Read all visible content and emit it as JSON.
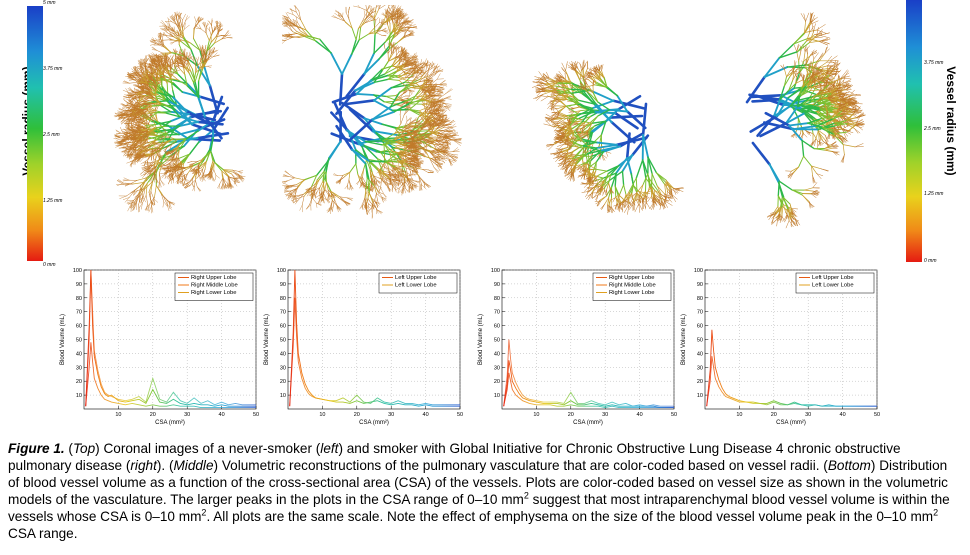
{
  "colorbar": {
    "title": "Vessel radius (mm)",
    "ticks": [
      "5 mm",
      "3.75 mm",
      "2.5 mm",
      "1.25 mm",
      "0 mm"
    ],
    "colors": [
      "#1a3fc7",
      "#1f8fd6",
      "#20c0b0",
      "#2fbf3a",
      "#9fd22a",
      "#e9d21c",
      "#f08a18",
      "#e51b12"
    ]
  },
  "lung_images": [
    {
      "description_icon": "lung-vasculature-never-smoker-right-lung"
    },
    {
      "description_icon": "lung-vasculature-never-smoker-left-lung"
    },
    {
      "description_icon": "lung-vasculature-smoker-right-lung"
    },
    {
      "description_icon": "lung-vasculature-smoker-left-lung"
    }
  ],
  "chart_data": [
    {
      "type": "line",
      "xlabel": "CSA (mm²)",
      "ylabel": "Blood Volume (mL)",
      "xlim": [
        0,
        50
      ],
      "ylim": [
        0,
        100
      ],
      "xticks": [
        10,
        20,
        30,
        40,
        50
      ],
      "yticks": [
        10,
        20,
        30,
        40,
        50,
        60,
        70,
        80,
        90,
        100
      ],
      "grid": true,
      "legend_position": "top-right",
      "series": [
        {
          "name": "Right Upper Lobe",
          "color": "#e65a14",
          "x": [
            0.5,
            1.5,
            2,
            2.5,
            3,
            4,
            5,
            6,
            7,
            8,
            10,
            12,
            14,
            16,
            18,
            20,
            22,
            24,
            26,
            28,
            30,
            32,
            34,
            36,
            38,
            40,
            42,
            44,
            46,
            48,
            50
          ],
          "y": [
            2,
            60,
            100,
            60,
            38,
            25,
            16,
            11,
            9,
            10,
            6,
            5,
            6,
            7,
            4,
            14,
            5,
            4,
            7,
            4,
            3,
            4,
            3,
            3,
            2,
            3,
            2,
            2,
            2,
            2,
            2
          ]
        },
        {
          "name": "Right Middle Lobe",
          "color": "#f07818",
          "x": [
            0.5,
            1.5,
            2,
            2.5,
            3,
            4,
            5,
            6,
            7,
            8,
            10,
            12,
            14,
            16,
            18,
            20,
            22,
            24,
            26,
            28,
            30,
            32,
            34,
            36,
            38,
            40,
            42,
            44,
            46,
            48,
            50
          ],
          "y": [
            2,
            30,
            48,
            34,
            22,
            15,
            10,
            7,
            6,
            5,
            4,
            3,
            4,
            3,
            2,
            3,
            2,
            2,
            3,
            2,
            2,
            2,
            1,
            1,
            1,
            1,
            1,
            1,
            1,
            1,
            1
          ]
        },
        {
          "name": "Right Lower Lobe",
          "color": "#e0a020",
          "x": [
            0.5,
            1.5,
            2,
            2.5,
            3,
            4,
            5,
            6,
            7,
            8,
            10,
            12,
            14,
            16,
            18,
            20,
            22,
            24,
            26,
            28,
            30,
            32,
            34,
            36,
            38,
            40,
            42,
            44,
            46,
            48,
            50
          ],
          "y": [
            2,
            50,
            100,
            70,
            42,
            28,
            18,
            12,
            10,
            9,
            7,
            6,
            7,
            9,
            5,
            22,
            7,
            5,
            12,
            6,
            4,
            8,
            4,
            6,
            3,
            5,
            3,
            4,
            3,
            3,
            3
          ]
        }
      ]
    },
    {
      "type": "line",
      "xlabel": "CSA (mm²)",
      "ylabel": "Blood Volume (mL)",
      "xlim": [
        0,
        50
      ],
      "ylim": [
        0,
        100
      ],
      "xticks": [
        10,
        20,
        30,
        40,
        50
      ],
      "yticks": [
        10,
        20,
        30,
        40,
        50,
        60,
        70,
        80,
        90,
        100
      ],
      "grid": true,
      "legend_position": "top-right",
      "series": [
        {
          "name": "Left Upper Lobe",
          "color": "#e65a14",
          "x": [
            0.5,
            1.5,
            2,
            2.5,
            3,
            4,
            5,
            6,
            7,
            8,
            10,
            12,
            14,
            16,
            18,
            20,
            22,
            24,
            26,
            28,
            30,
            32,
            34,
            36,
            38,
            40,
            42,
            44,
            46,
            48,
            50
          ],
          "y": [
            2,
            55,
            100,
            62,
            40,
            26,
            18,
            13,
            10,
            8,
            7,
            6,
            5,
            5,
            4,
            6,
            4,
            5,
            6,
            4,
            3,
            4,
            3,
            3,
            2,
            3,
            2,
            2,
            2,
            2,
            2
          ]
        },
        {
          "name": "Left Lower Lobe",
          "color": "#e0a020",
          "x": [
            0.5,
            1.5,
            2,
            2.5,
            3,
            4,
            5,
            6,
            7,
            8,
            10,
            12,
            14,
            16,
            18,
            20,
            22,
            24,
            26,
            28,
            30,
            32,
            34,
            36,
            38,
            40,
            42,
            44,
            46,
            48,
            50
          ],
          "y": [
            2,
            45,
            80,
            52,
            34,
            22,
            15,
            11,
            9,
            8,
            7,
            6,
            6,
            8,
            5,
            10,
            5,
            4,
            8,
            5,
            4,
            6,
            4,
            4,
            3,
            4,
            3,
            3,
            3,
            3,
            3
          ]
        }
      ]
    },
    {
      "type": "line",
      "xlabel": "CSA (mm²)",
      "ylabel": "Blood Volume (mL)",
      "xlim": [
        0,
        50
      ],
      "ylim": [
        0,
        100
      ],
      "xticks": [
        10,
        20,
        30,
        40,
        50
      ],
      "yticks": [
        10,
        20,
        30,
        40,
        50,
        60,
        70,
        80,
        90,
        100
      ],
      "grid": true,
      "legend_position": "top-right",
      "series": [
        {
          "name": "Right Upper Lobe",
          "color": "#e65a14",
          "x": [
            0.5,
            1.5,
            2,
            2.5,
            3,
            4,
            5,
            6,
            7,
            8,
            10,
            12,
            14,
            16,
            18,
            20,
            22,
            24,
            26,
            28,
            30,
            32,
            34,
            36,
            38,
            40,
            42,
            44,
            46,
            48,
            50
          ],
          "y": [
            2,
            18,
            35,
            28,
            20,
            15,
            11,
            8,
            7,
            6,
            5,
            4,
            4,
            4,
            3,
            6,
            3,
            3,
            4,
            3,
            2,
            3,
            2,
            2,
            2,
            2,
            2,
            2,
            1,
            1,
            1
          ]
        },
        {
          "name": "Right Middle Lobe",
          "color": "#f07818",
          "x": [
            0.5,
            1.5,
            2,
            2.5,
            3,
            4,
            5,
            6,
            7,
            8,
            10,
            12,
            14,
            16,
            18,
            20,
            22,
            24,
            26,
            28,
            30,
            32,
            34,
            36,
            38,
            40,
            42,
            44,
            46,
            48,
            50
          ],
          "y": [
            2,
            14,
            26,
            20,
            14,
            10,
            8,
            6,
            5,
            4,
            3,
            3,
            3,
            2,
            2,
            3,
            2,
            2,
            2,
            2,
            1,
            2,
            1,
            1,
            1,
            1,
            1,
            1,
            1,
            1,
            1
          ]
        },
        {
          "name": "Right Lower Lobe",
          "color": "#e0a020",
          "x": [
            0.5,
            1.5,
            2,
            2.5,
            3,
            4,
            5,
            6,
            7,
            8,
            10,
            12,
            14,
            16,
            18,
            20,
            22,
            24,
            26,
            28,
            30,
            32,
            34,
            36,
            38,
            40,
            42,
            44,
            46,
            48,
            50
          ],
          "y": [
            2,
            24,
            50,
            36,
            26,
            19,
            14,
            10,
            8,
            7,
            6,
            5,
            5,
            5,
            4,
            12,
            4,
            4,
            6,
            4,
            3,
            5,
            3,
            4,
            2,
            3,
            2,
            3,
            2,
            2,
            2
          ]
        }
      ]
    },
    {
      "type": "line",
      "xlabel": "CSA (mm²)",
      "ylabel": "Blood Volume (mL)",
      "xlim": [
        0,
        50
      ],
      "ylim": [
        0,
        100
      ],
      "xticks": [
        10,
        20,
        30,
        40,
        50
      ],
      "yticks": [
        10,
        20,
        30,
        40,
        50,
        60,
        70,
        80,
        90,
        100
      ],
      "grid": true,
      "legend_position": "top-right",
      "series": [
        {
          "name": "Left Upper Lobe",
          "color": "#e65a14",
          "x": [
            0.5,
            1.5,
            2,
            2.5,
            3,
            4,
            5,
            6,
            7,
            8,
            10,
            12,
            14,
            16,
            18,
            20,
            22,
            24,
            26,
            28,
            30,
            32,
            34,
            36,
            38,
            40,
            42,
            44,
            46,
            48,
            50
          ],
          "y": [
            2,
            28,
            57,
            42,
            30,
            21,
            15,
            11,
            9,
            8,
            6,
            5,
            5,
            4,
            4,
            6,
            4,
            3,
            5,
            3,
            3,
            3,
            2,
            3,
            2,
            2,
            2,
            2,
            2,
            2,
            2
          ]
        },
        {
          "name": "Left Lower Lobe",
          "color": "#e0a020",
          "x": [
            0.5,
            1.5,
            2,
            2.5,
            3,
            4,
            5,
            6,
            7,
            8,
            10,
            12,
            14,
            16,
            18,
            20,
            22,
            24,
            26,
            28,
            30,
            32,
            34,
            36,
            38,
            40,
            42,
            44,
            46,
            48,
            50
          ],
          "y": [
            2,
            20,
            38,
            30,
            22,
            16,
            12,
            9,
            8,
            7,
            5,
            5,
            4,
            4,
            3,
            5,
            3,
            3,
            4,
            3,
            2,
            3,
            2,
            2,
            2,
            2,
            2,
            2,
            2,
            2,
            2
          ]
        }
      ]
    }
  ],
  "caption": {
    "label": "Figure 1.",
    "seg1": " (",
    "top": "Top",
    "seg2": ") Coronal images of a never-smoker (",
    "left": "left",
    "seg3": ") and smoker with Global Initiative for Chronic Obstructive Lung Disease 4 chronic obstructive pulmonary disease (",
    "right": "right",
    "seg4": "). (",
    "middle": "Middle",
    "seg5": ") Volumetric reconstructions of the pulmonary vasculature that are color-coded based on vessel radii. (",
    "bottom": "Bottom",
    "seg6": ") Distribution of blood vessel volume as a function of the cross-sectional area (CSA) of the vessels. Plots are color-coded based on vessel size as shown in the volumetric models of the vasculature. The larger peaks in the plots in the CSA range of 0–10 mm",
    "sup1": "2",
    "seg7": " suggest that most intraparenchymal blood vessel volume is within the vessels whose CSA is 0–10 mm",
    "sup2": "2",
    "seg8": ". All plots are the same scale. Note the effect of emphysema on the size of the blood vessel volume peak in the 0–10 mm",
    "sup3": "2",
    "seg9": " CSA range."
  }
}
